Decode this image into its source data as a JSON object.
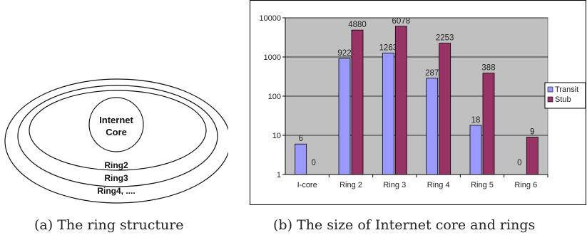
{
  "ring_diagram": {
    "core_label_line1": "Internet",
    "core_label_line2": "Core",
    "rings": [
      "Ring2",
      "Ring3",
      "Ring4, ...."
    ]
  },
  "captions": {
    "a": "(a) The ring structure",
    "b": "(b) The size of Internet core and rings"
  },
  "chart_data": {
    "type": "bar",
    "title": "",
    "xlabel": "",
    "ylabel": "",
    "yscale": "log",
    "ylim": [
      1,
      10000
    ],
    "yticks": [
      "1",
      "10",
      "100",
      "1000",
      "10000"
    ],
    "categories": [
      "I-core",
      "Ring 2",
      "Ring 3",
      "Ring 4",
      "Ring 5",
      "Ring 6"
    ],
    "series": [
      {
        "name": "Transit",
        "values": [
          6,
          922,
          1263,
          287,
          18,
          0
        ],
        "labels": [
          "6",
          "922",
          "1263",
          "287",
          "18",
          "0"
        ],
        "color": "#9999ff"
      },
      {
        "name": "Stub",
        "values": [
          0,
          4880,
          6078,
          2253,
          388,
          9
        ],
        "labels": [
          "0",
          "4880",
          "6078",
          "2253",
          "388",
          "9"
        ],
        "color": "#993366"
      }
    ],
    "plot_background": "#c0c0c0",
    "grid": true,
    "legend_position": "right"
  }
}
